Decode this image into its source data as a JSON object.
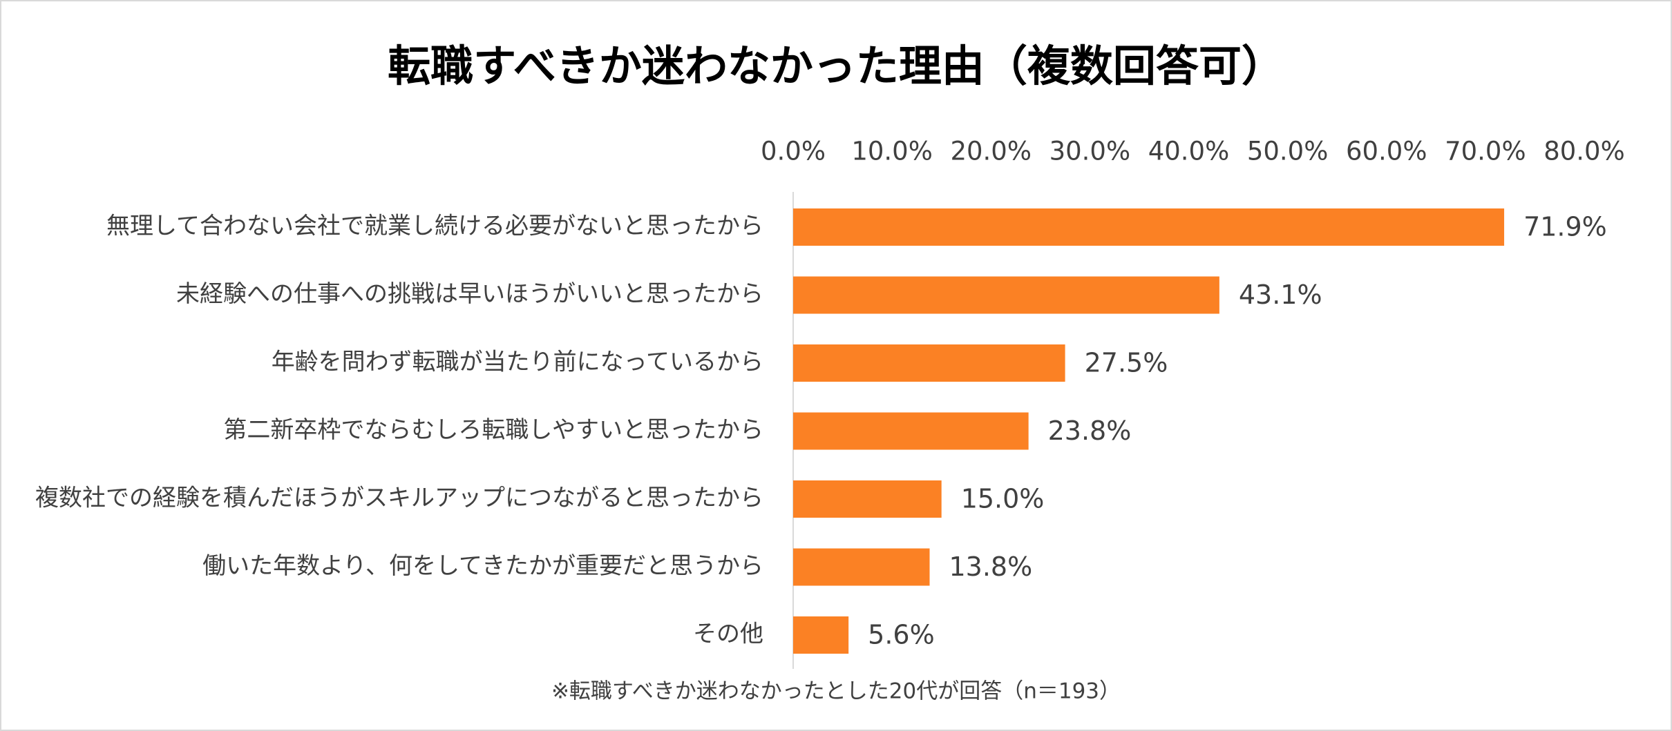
{
  "chart_data": {
    "type": "bar",
    "orientation": "horizontal",
    "title": "転職すべきか迷わなかった理由（複数回答可）",
    "categories": [
      "無理して合わない会社で就業し続ける必要がないと思ったから",
      "未経験への仕事への挑戦は早いほうがいいと思ったから",
      "年齢を問わず転職が当たり前になっているから",
      "第二新卒枠でならむしろ転職しやすいと思ったから",
      "複数社での経験を積んだほうがスキルアップにつながると思ったから",
      "働いた年数より、何をしてきたかが重要だと思うから",
      "その他"
    ],
    "values": [
      71.9,
      43.1,
      27.5,
      23.8,
      15.0,
      13.8,
      5.6
    ],
    "value_labels": [
      "71.9%",
      "43.1%",
      "27.5%",
      "23.8%",
      "15.0%",
      "13.8%",
      "5.6%"
    ],
    "color": "#fb8124",
    "xlim": [
      0,
      80
    ],
    "xticks": [
      {
        "value": 0,
        "label": "0.0%"
      },
      {
        "value": 10,
        "label": "10.0%"
      },
      {
        "value": 20,
        "label": "20.0%"
      },
      {
        "value": 30,
        "label": "30.0%"
      },
      {
        "value": 40,
        "label": "40.0%"
      },
      {
        "value": 50,
        "label": "50.0%"
      },
      {
        "value": 60,
        "label": "60.0%"
      },
      {
        "value": 70,
        "label": "70.0%"
      },
      {
        "value": 80,
        "label": "80.0%"
      }
    ],
    "grid": false,
    "note": "※転職すべきか迷わなかったとした20代が回答（n＝193）"
  }
}
